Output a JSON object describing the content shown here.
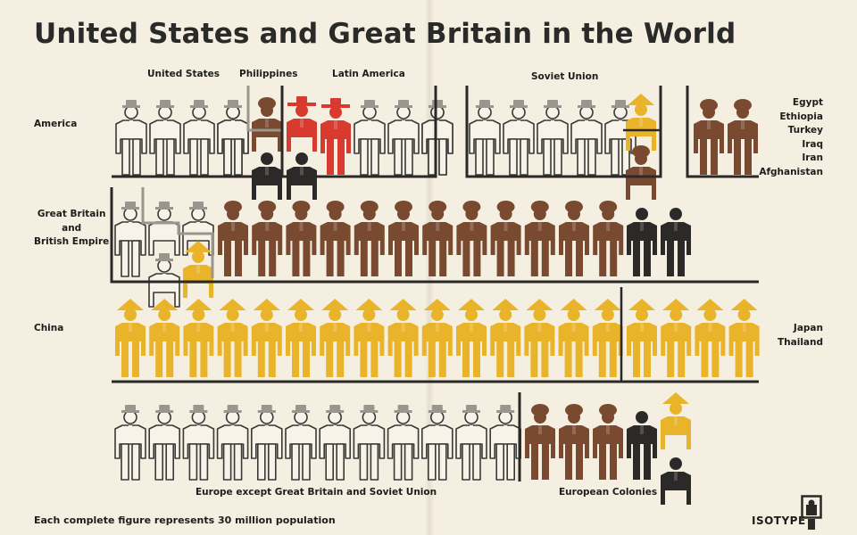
{
  "title": "United States and Great Britain in the World",
  "labels": {
    "united_states": "United States",
    "philippines": "Philippines",
    "latin_america": "Latin America",
    "soviet_union": "Soviet Union",
    "america": "America",
    "mideast": [
      "Egypt",
      "Ethiopia",
      "Turkey",
      "Iraq",
      "Iran",
      "Afghanistan"
    ],
    "great_britain": [
      "Great Britain",
      "and",
      "British Empire"
    ],
    "china": "China",
    "japan": [
      "Japan",
      "Thailand"
    ],
    "europe": "Europe except Great Britain and Soviet Union",
    "colonies": "European Colonies"
  },
  "footer": "Each complete figure represents 30 million population",
  "logo": "ISOTYPE",
  "colors": {
    "background": "#f4efe1",
    "white_figure": "#f7f3e8",
    "outline": "#3a3936",
    "hat_grey": "#9a968d",
    "brown": "#7a4a30",
    "red": "#d93a2f",
    "yellow": "#e9b42a",
    "black": "#2b2a29",
    "line": "#2a2927",
    "grey_line": "#9a968d"
  },
  "chart_data": {
    "type": "isotype",
    "unit": "Each complete figure represents 30 million population",
    "rows": [
      {
        "region": "America",
        "groups": [
          {
            "label": "United States",
            "figures": [
              {
                "type": "white",
                "n": 5
              }
            ]
          },
          {
            "label": "Philippines",
            "figures": [
              {
                "type": "brown",
                "n": 0.5
              },
              {
                "type": "black",
                "n": 0.5
              }
            ]
          },
          {
            "label": "Latin America",
            "figures": [
              {
                "type": "red",
                "n": 1.5
              },
              {
                "type": "black",
                "n": 0.5
              },
              {
                "type": "white",
                "n": 3
              }
            ]
          },
          {
            "label": "Soviet Union",
            "figures": [
              {
                "type": "white",
                "n": 5
              },
              {
                "type": "yellow",
                "n": 0.5
              },
              {
                "type": "brown",
                "n": 0.5
              }
            ]
          },
          {
            "label": "Egypt Ethiopia Turkey Iraq Iran Afghanistan",
            "figures": [
              {
                "type": "brown",
                "n": 2
              }
            ]
          }
        ]
      },
      {
        "region": "Great Britain and British Empire",
        "groups": [
          {
            "label": "Great Britain",
            "figures": [
              {
                "type": "white",
                "n": 1.5
              }
            ]
          },
          {
            "label": "British Empire",
            "figures": [
              {
                "type": "white",
                "n": 1
              },
              {
                "type": "yellow",
                "n": 0.5
              },
              {
                "type": "brown",
                "n": 12
              },
              {
                "type": "black",
                "n": 2
              }
            ]
          }
        ]
      },
      {
        "region": "China",
        "groups": [
          {
            "label": "China",
            "figures": [
              {
                "type": "yellow",
                "n": 15
              }
            ]
          },
          {
            "label": "Japan Thailand",
            "figures": [
              {
                "type": "yellow",
                "n": 4
              }
            ]
          }
        ]
      },
      {
        "region": "Europe",
        "groups": [
          {
            "label": "Europe except Great Britain and Soviet Union",
            "figures": [
              {
                "type": "white",
                "n": 12
              }
            ]
          },
          {
            "label": "European Colonies",
            "figures": [
              {
                "type": "brown",
                "n": 3
              },
              {
                "type": "black",
                "n": 1
              },
              {
                "type": "yellow",
                "n": 0.5
              },
              {
                "type": "black",
                "n": 0.5
              }
            ]
          }
        ]
      }
    ]
  }
}
